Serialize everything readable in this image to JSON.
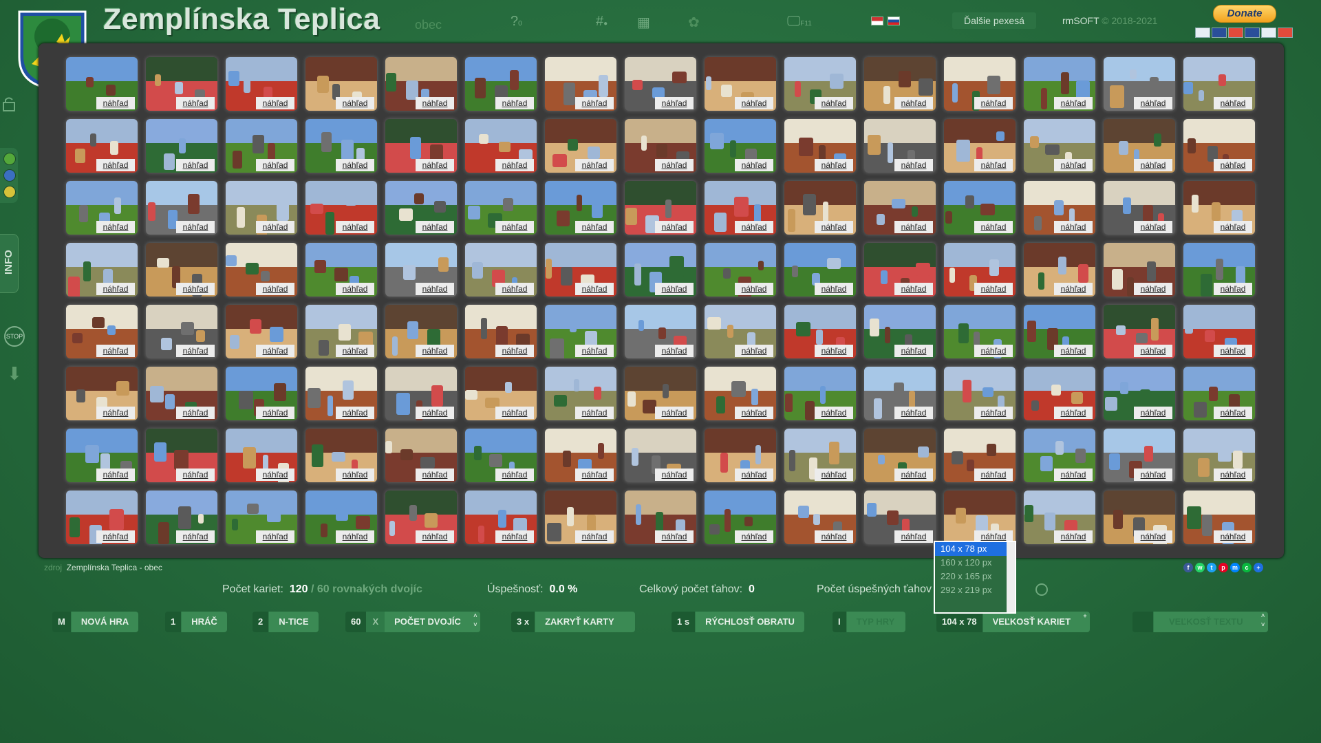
{
  "header": {
    "title": "Zemplínska Teplica",
    "subtitle": "obec",
    "icon_help": "?",
    "icon_help_count": "0",
    "icon_hash": "#",
    "icon_monitor_key": "F11",
    "other_games": "Ďalšie pexesá",
    "brand": "rmSOFT",
    "copyright": "© 2018-2021",
    "donate": "Donate"
  },
  "sidebar": {
    "info_label": "INFO",
    "stop_label": "STOP"
  },
  "board": {
    "preview_label": "náhľad",
    "rows": 8,
    "cols": 15
  },
  "footer": {
    "source_prefix": "zdroj",
    "source_name": "Zemplínska Teplica - obec",
    "cards_label": "Počet kariet:",
    "cards_value": "120",
    "cards_sep": "/",
    "pairs_value": "60",
    "pairs_suffix": "rovnakých dvojíc",
    "success_label": "Úspešnosť:",
    "success_value": "0.0 %",
    "moves_label": "Celkový počet ťahov:",
    "moves_value": "0",
    "success_moves_label": "Počet úspešných ťahov"
  },
  "controls": {
    "new_game_key": "M",
    "new_game": "NOVÁ HRA",
    "player_key": "1",
    "player": "HRÁČ",
    "ntuple_key": "2",
    "ntuple": "N-TICE",
    "pairs_key": "60",
    "pairs_x": "X",
    "pairs": "POČET DVOJÍC",
    "cover_key": "3 x",
    "cover": "ZAKRYŤ KARTY",
    "speed_key": "1 s",
    "speed": "RÝCHLOSŤ OBRATU",
    "type_key": "I",
    "type": "TYP HRY",
    "size_key": "104 x 78",
    "size": "VEĽKOSŤ KARIET",
    "text_size": "VEĽKOSŤ TEXTU"
  },
  "size_dropdown": {
    "options": [
      "104 x 78 px",
      "160 x 120 px",
      "220 x 165 px",
      "292 x 219 px"
    ],
    "selected": "104 x 78 px"
  },
  "colors": {
    "background": "#2a7040",
    "board": "#3a3a3a",
    "accent_select": "#1e6fe0",
    "donate": "#f2a31e"
  }
}
